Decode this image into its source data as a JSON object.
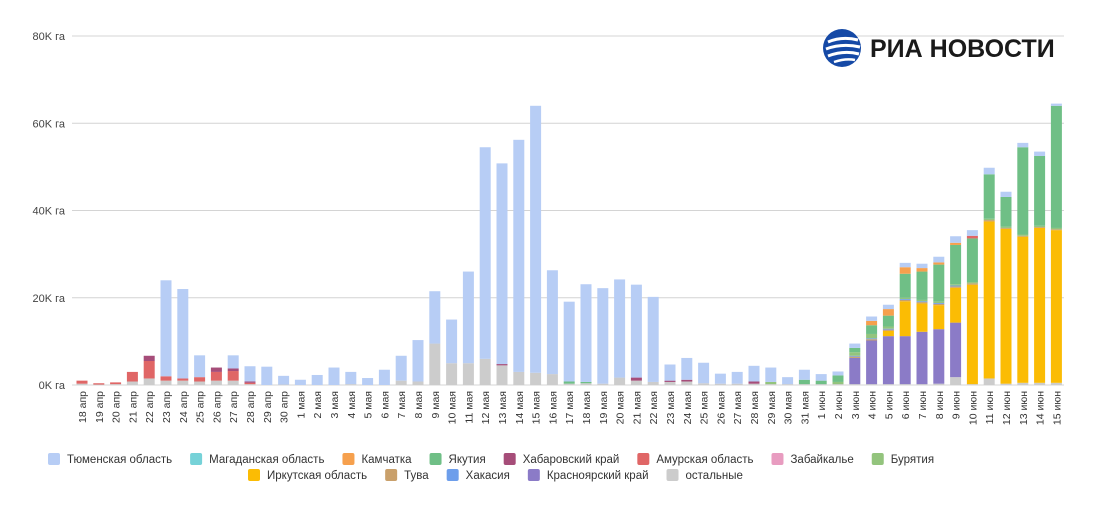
{
  "logo": {
    "text": "РИА НОВОСТИ",
    "mark": "ria-globe-logo",
    "color": "#1549a6"
  },
  "chart_data": {
    "type": "bar",
    "stacked": true,
    "title": "",
    "xlabel": "",
    "ylabel": "",
    "ylim": [
      0,
      80000
    ],
    "y_ticks": [
      0,
      20000,
      40000,
      60000,
      80000
    ],
    "y_tick_labels": [
      "0K га",
      "20K га",
      "40K га",
      "60K га",
      "80K га"
    ],
    "grid": true,
    "legend_position": "bottom",
    "categories": [
      "18 апр",
      "19 апр",
      "20 апр",
      "21 апр",
      "22 апр",
      "23 апр",
      "24 апр",
      "25 апр",
      "26 апр",
      "27 апр",
      "28 апр",
      "29 апр",
      "30 апр",
      "1 мая",
      "2 мая",
      "3 мая",
      "4 мая",
      "5 мая",
      "6 мая",
      "7 мая",
      "8 мая",
      "9 мая",
      "10 мая",
      "11 мая",
      "12 мая",
      "13 мая",
      "14 мая",
      "15 мая",
      "16 мая",
      "17 мая",
      "18 мая",
      "19 мая",
      "20 мая",
      "21 мая",
      "22 мая",
      "23 мая",
      "24 мая",
      "25 мая",
      "26 мая",
      "27 мая",
      "28 мая",
      "29 мая",
      "30 мая",
      "31 мая",
      "1 июн",
      "2 июн",
      "3 июн",
      "4 июн",
      "5 июн",
      "6 июн",
      "7 июн",
      "8 июн",
      "9 июн",
      "10 июн",
      "11 июн",
      "12 июн",
      "13 июн",
      "14 июн",
      "15 июн"
    ],
    "series": [
      {
        "name": "остальные",
        "color": "#cccccc",
        "values": [
          300,
          100,
          200,
          800,
          1500,
          1000,
          1000,
          800,
          1000,
          1000,
          200,
          0,
          100,
          0,
          0,
          0,
          200,
          0,
          0,
          1000,
          800,
          9500,
          5000,
          5000,
          6000,
          4500,
          3000,
          2800,
          2500,
          300,
          400,
          300,
          1700,
          1000,
          700,
          700,
          800,
          400,
          300,
          300,
          300,
          200,
          200,
          200,
          200,
          200,
          200,
          200,
          200,
          200,
          200,
          300,
          1800,
          200,
          1500,
          300,
          500,
          500,
          500
        ]
      },
      {
        "name": "Красноярский край",
        "color": "#8b7bc7",
        "values": [
          0,
          0,
          0,
          0,
          0,
          0,
          0,
          0,
          0,
          0,
          0,
          0,
          0,
          0,
          0,
          0,
          0,
          0,
          0,
          0,
          0,
          0,
          0,
          0,
          0,
          0,
          0,
          0,
          0,
          0,
          0,
          0,
          0,
          0,
          0,
          0,
          0,
          0,
          0,
          0,
          0,
          0,
          0,
          0,
          0,
          0,
          6000,
          10000,
          11000,
          11000,
          12000,
          12500,
          12500,
          0,
          0,
          0,
          0,
          0,
          0
        ]
      },
      {
        "name": "Иркутская область",
        "color": "#fbbc04",
        "values": [
          0,
          0,
          0,
          0,
          0,
          0,
          0,
          0,
          0,
          0,
          0,
          0,
          0,
          0,
          0,
          0,
          0,
          0,
          0,
          0,
          0,
          0,
          0,
          0,
          0,
          0,
          0,
          0,
          0,
          0,
          0,
          0,
          0,
          0,
          0,
          0,
          0,
          0,
          0,
          0,
          0,
          0,
          0,
          0,
          0,
          0,
          0,
          0,
          1200,
          8000,
          6500,
          5500,
          8000,
          22800,
          36000,
          35500,
          33500,
          35500,
          35000
        ]
      },
      {
        "name": "Тува",
        "color": "#c9a06b",
        "values": [
          0,
          0,
          0,
          0,
          0,
          0,
          0,
          0,
          0,
          0,
          0,
          0,
          0,
          0,
          0,
          0,
          0,
          0,
          0,
          0,
          0,
          0,
          0,
          0,
          0,
          0,
          0,
          0,
          0,
          0,
          0,
          0,
          0,
          0,
          0,
          0,
          0,
          0,
          0,
          0,
          0,
          0,
          0,
          0,
          0,
          0,
          300,
          300,
          300,
          300,
          300,
          300,
          300,
          300,
          300,
          200,
          200,
          200,
          200
        ]
      },
      {
        "name": "Хакасия",
        "color": "#6d9eeb",
        "values": [
          0,
          0,
          0,
          0,
          0,
          0,
          0,
          0,
          0,
          0,
          0,
          0,
          0,
          0,
          0,
          0,
          0,
          0,
          0,
          0,
          0,
          0,
          0,
          0,
          0,
          0,
          0,
          0,
          0,
          0,
          0,
          0,
          0,
          0,
          0,
          0,
          0,
          0,
          0,
          0,
          0,
          0,
          0,
          0,
          0,
          0,
          200,
          200,
          200,
          200,
          200,
          200,
          200,
          0,
          0,
          0,
          0,
          0,
          0
        ]
      },
      {
        "name": "Бурятия",
        "color": "#93c47d",
        "values": [
          0,
          0,
          0,
          0,
          0,
          0,
          0,
          0,
          0,
          0,
          0,
          0,
          0,
          0,
          0,
          0,
          0,
          0,
          0,
          0,
          0,
          0,
          0,
          0,
          0,
          0,
          0,
          0,
          0,
          0,
          0,
          0,
          0,
          0,
          0,
          0,
          0,
          0,
          0,
          0,
          0,
          500,
          0,
          0,
          0,
          500,
          800,
          1000,
          500,
          300,
          300,
          300,
          300,
          300,
          300,
          300,
          300,
          300,
          300
        ]
      },
      {
        "name": "Забайкалье",
        "color": "#e89cc0",
        "values": [
          0,
          0,
          0,
          0,
          0,
          0,
          0,
          0,
          0,
          0,
          0,
          0,
          0,
          0,
          0,
          0,
          0,
          0,
          0,
          0,
          0,
          0,
          0,
          0,
          0,
          0,
          0,
          0,
          0,
          0,
          0,
          0,
          0,
          0,
          0,
          0,
          0,
          0,
          0,
          0,
          0,
          0,
          0,
          0,
          0,
          0,
          0,
          0,
          0,
          0,
          0,
          0,
          0,
          0,
          0,
          0,
          0,
          0,
          0
        ]
      },
      {
        "name": "Якутия",
        "color": "#6fbf86",
        "values": [
          0,
          0,
          0,
          0,
          0,
          0,
          0,
          0,
          0,
          0,
          0,
          0,
          0,
          0,
          0,
          0,
          0,
          0,
          0,
          0,
          0,
          0,
          0,
          0,
          0,
          0,
          0,
          0,
          0,
          500,
          300,
          0,
          0,
          0,
          0,
          0,
          0,
          0,
          0,
          0,
          0,
          0,
          0,
          1000,
          800,
          1500,
          1000,
          2000,
          2500,
          5500,
          6500,
          8500,
          9000,
          10000,
          10200,
          6800,
          20000,
          16000,
          28000
        ]
      },
      {
        "name": "Амурская область",
        "color": "#e06666",
        "values": [
          700,
          300,
          400,
          2200,
          4000,
          1000,
          500,
          1000,
          2000,
          2200,
          300,
          0,
          0,
          0,
          0,
          0,
          0,
          0,
          0,
          0,
          0,
          0,
          0,
          0,
          0,
          0,
          0,
          0,
          0,
          0,
          0,
          0,
          0,
          0,
          0,
          0,
          0,
          0,
          0,
          0,
          0,
          0,
          0,
          0,
          0,
          0,
          0,
          0,
          0,
          0,
          0,
          0,
          0,
          600,
          0,
          0,
          0,
          0,
          0
        ]
      },
      {
        "name": "Хабаровский край",
        "color": "#a64d79",
        "values": [
          0,
          0,
          0,
          0,
          1200,
          0,
          0,
          0,
          1000,
          600,
          300,
          0,
          0,
          0,
          0,
          0,
          0,
          0,
          0,
          0,
          0,
          0,
          0,
          0,
          0,
          300,
          0,
          0,
          0,
          0,
          0,
          0,
          0,
          700,
          0,
          300,
          400,
          0,
          0,
          0,
          500,
          0,
          0,
          0,
          0,
          0,
          0,
          0,
          0,
          0,
          0,
          0,
          0,
          0,
          0,
          0,
          0,
          0,
          0
        ]
      },
      {
        "name": "Камчатка",
        "color": "#f6a04d",
        "values": [
          0,
          0,
          0,
          0,
          0,
          0,
          0,
          0,
          0,
          0,
          0,
          0,
          0,
          0,
          0,
          0,
          0,
          0,
          0,
          0,
          0,
          0,
          0,
          0,
          0,
          0,
          0,
          0,
          0,
          0,
          0,
          0,
          0,
          0,
          0,
          0,
          0,
          0,
          0,
          0,
          0,
          0,
          0,
          0,
          0,
          0,
          0,
          1000,
          1500,
          1500,
          800,
          500,
          500,
          0,
          0,
          0,
          0,
          0,
          0
        ]
      },
      {
        "name": "Магаданская область",
        "color": "#76d2d8",
        "values": [
          0,
          0,
          0,
          0,
          0,
          0,
          0,
          0,
          0,
          0,
          0,
          0,
          0,
          0,
          0,
          0,
          0,
          0,
          0,
          0,
          0,
          0,
          0,
          0,
          0,
          0,
          0,
          0,
          0,
          0,
          0,
          0,
          0,
          0,
          0,
          0,
          0,
          0,
          0,
          0,
          0,
          0,
          0,
          0,
          0,
          0,
          0,
          0,
          0,
          0,
          0,
          0,
          0,
          0,
          0,
          0,
          0,
          0,
          0
        ]
      },
      {
        "name": "Тюменская область",
        "color": "#b7cdf5",
        "values": [
          0,
          0,
          0,
          0,
          0,
          22000,
          20500,
          5000,
          0,
          3000,
          3500,
          4200,
          2000,
          1200,
          2300,
          4000,
          2800,
          1600,
          3500,
          5700,
          9500,
          12000,
          10000,
          21000,
          48500,
          46000,
          53200,
          61200,
          23800,
          18300,
          22400,
          21900,
          22500,
          21300,
          19500,
          3700,
          5000,
          4700,
          2300,
          2700,
          3600,
          3300,
          1600,
          2300,
          1500,
          900,
          1000,
          1000,
          1000,
          1000,
          1000,
          1300,
          1500,
          1300,
          1500,
          1200,
          1000,
          1000,
          500
        ]
      }
    ],
    "legend": [
      [
        "Тюменская область",
        "Магаданская область",
        "Камчатка",
        "Якутия",
        "Хабаровский край",
        "Амурская область",
        "Забайкалье",
        "Бурятия"
      ],
      [
        "Иркутская область",
        "Тува",
        "Хакасия",
        "Красноярский край",
        "остальные"
      ]
    ]
  }
}
